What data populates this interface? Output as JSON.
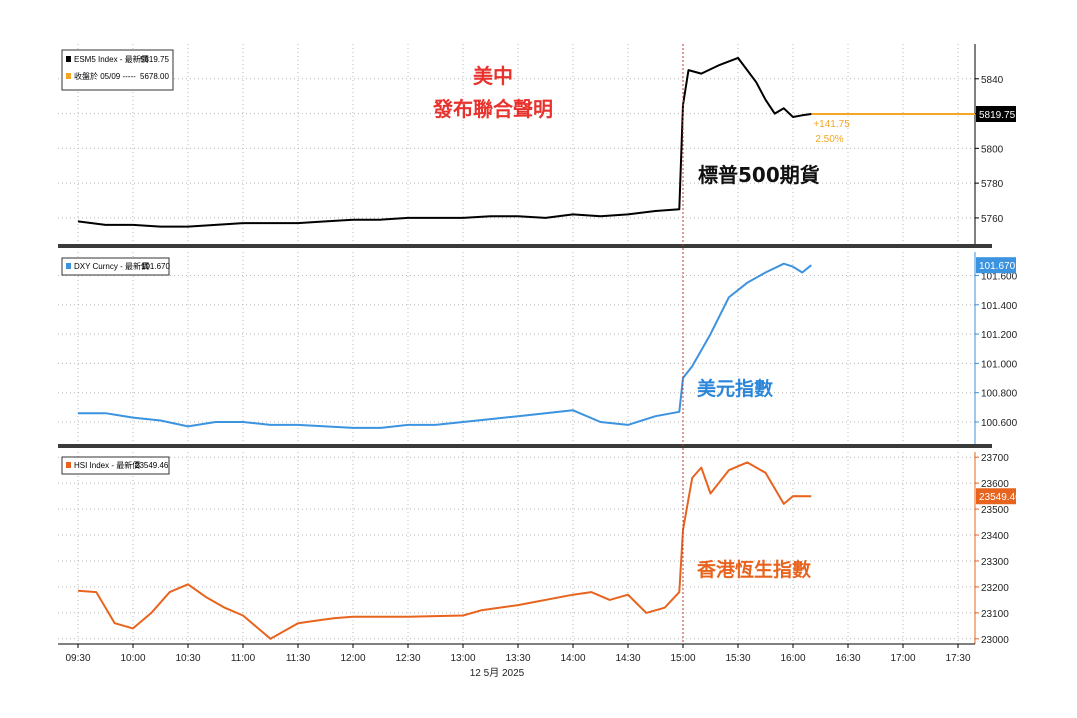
{
  "colors": {
    "es": "#000000",
    "dxy": "#3c93e0",
    "hsi": "#e8641e",
    "prev_close": "#f5a623",
    "red_anno": "#e8322d",
    "blue_anno": "#2b86d9",
    "orange_anno": "#e8641e"
  },
  "annotations": {
    "joint_line1": "美中",
    "joint_line2": "發布聯合聲明",
    "es_name": "標普500期貨",
    "dxy_name": "美元指數",
    "hsi_name": "香港恆生指數"
  },
  "date_label": "12 5月 2025",
  "event_time": "15:00",
  "x_axis": {
    "ticks": [
      "09:30",
      "10:00",
      "10:30",
      "11:00",
      "11:30",
      "12:00",
      "12:30",
      "13:00",
      "13:30",
      "14:00",
      "14:30",
      "15:00",
      "15:30",
      "16:00",
      "16:30",
      "17:00",
      "17:30"
    ]
  },
  "chart_data": [
    {
      "type": "line",
      "legend": [
        {
          "label": "ESM5 Index - 最新價",
          "value": "5819.75"
        },
        {
          "label": "收盤於 05/09 -----",
          "value": "5678.00"
        }
      ],
      "last_value": "5819.75",
      "change_abs": "+141.75",
      "change_pct": "2.50%",
      "ylim": [
        5745,
        5860
      ],
      "yticks": [
        "5840",
        "5820",
        "5800",
        "5780",
        "5760"
      ],
      "x": [
        "09:30",
        "09:45",
        "10:00",
        "10:15",
        "10:30",
        "10:45",
        "11:00",
        "11:15",
        "11:30",
        "11:45",
        "12:00",
        "12:15",
        "12:30",
        "12:45",
        "13:00",
        "13:15",
        "13:30",
        "13:45",
        "14:00",
        "14:15",
        "14:30",
        "14:45",
        "14:58",
        "15:00",
        "15:03",
        "15:10",
        "15:20",
        "15:30",
        "15:35",
        "15:40",
        "15:45",
        "15:50",
        "15:55",
        "16:00",
        "16:05",
        "16:10"
      ],
      "values": [
        5758,
        5756,
        5756,
        5755,
        5755,
        5756,
        5757,
        5757,
        5757,
        5758,
        5759,
        5759,
        5760,
        5760,
        5760,
        5761,
        5761,
        5760,
        5762,
        5761,
        5762,
        5764,
        5765,
        5825,
        5845,
        5843,
        5848,
        5852,
        5845,
        5838,
        5828,
        5820,
        5823,
        5818,
        5819,
        5819.75
      ]
    },
    {
      "type": "line",
      "legend": [
        {
          "label": "DXY Curncy - 最新價",
          "value": "101.670"
        }
      ],
      "last_value": "101.670",
      "ylim": [
        100.45,
        101.76
      ],
      "yticks": [
        "101.600",
        "101.400",
        "101.200",
        "101.000",
        "100.800",
        "100.600"
      ],
      "x": [
        "09:30",
        "09:45",
        "10:00",
        "10:15",
        "10:30",
        "10:45",
        "11:00",
        "11:15",
        "11:30",
        "11:45",
        "12:00",
        "12:15",
        "12:30",
        "12:45",
        "13:00",
        "13:15",
        "13:30",
        "13:45",
        "14:00",
        "14:15",
        "14:30",
        "14:45",
        "14:58",
        "15:00",
        "15:05",
        "15:15",
        "15:25",
        "15:35",
        "15:45",
        "15:55",
        "16:00",
        "16:05",
        "16:10"
      ],
      "values": [
        100.66,
        100.66,
        100.63,
        100.61,
        100.57,
        100.6,
        100.6,
        100.58,
        100.58,
        100.57,
        100.56,
        100.56,
        100.58,
        100.58,
        100.6,
        100.62,
        100.64,
        100.66,
        100.68,
        100.6,
        100.58,
        100.64,
        100.67,
        100.9,
        100.98,
        101.2,
        101.45,
        101.55,
        101.62,
        101.68,
        101.66,
        101.62,
        101.67
      ]
    },
    {
      "type": "line",
      "legend": [
        {
          "label": "HSI Index - 最新價",
          "value": "23549.46"
        }
      ],
      "last_value": "23549.46",
      "ylim": [
        22980,
        23720
      ],
      "yticks": [
        "23700",
        "23600",
        "23500",
        "23400",
        "23300",
        "23200",
        "23100",
        "23000"
      ],
      "x": [
        "09:30",
        "09:40",
        "09:50",
        "10:00",
        "10:10",
        "10:20",
        "10:30",
        "10:40",
        "10:50",
        "11:00",
        "11:10",
        "11:15",
        "11:30",
        "11:40",
        "11:50",
        "12:00",
        "12:30",
        "13:00",
        "13:10",
        "13:30",
        "14:00",
        "14:10",
        "14:20",
        "14:30",
        "14:40",
        "14:50",
        "14:58",
        "15:00",
        "15:05",
        "15:10",
        "15:15",
        "15:25",
        "15:35",
        "15:45",
        "15:55",
        "16:00",
        "16:10"
      ],
      "values": [
        23185,
        23180,
        23060,
        23040,
        23100,
        23180,
        23210,
        23160,
        23120,
        23090,
        23030,
        23000,
        23060,
        23070,
        23080,
        23085,
        23085,
        23090,
        23110,
        23130,
        23170,
        23180,
        23150,
        23170,
        23100,
        23120,
        23180,
        23420,
        23620,
        23660,
        23560,
        23650,
        23680,
        23640,
        23520,
        23550,
        23549.46
      ]
    }
  ]
}
